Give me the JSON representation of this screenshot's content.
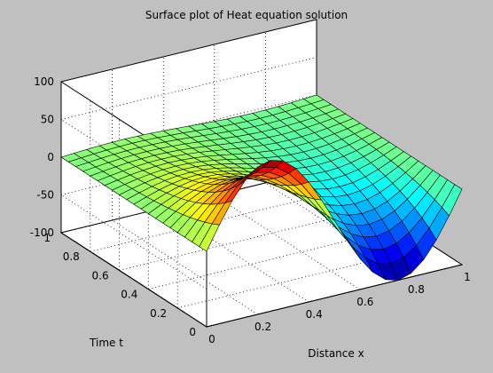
{
  "chart_data": {
    "type": "surface",
    "title": "Surface plot of Heat equation solution",
    "xlabel": "Distance x",
    "ylabel": "Time t",
    "zlabel": "",
    "xlim": [
      0,
      1
    ],
    "ylim": [
      0,
      1
    ],
    "zlim": [
      -100,
      100
    ],
    "xticks": [
      "0",
      "0.2",
      "0.4",
      "0.6",
      "0.8",
      "1"
    ],
    "yticks": [
      "0",
      "0.2",
      "0.4",
      "0.6",
      "0.8",
      "1"
    ],
    "zticks": [
      "-100",
      "-50",
      "0",
      "50",
      "100"
    ],
    "grid": true,
    "colormap": "jet",
    "x": [
      0,
      0.05,
      0.1,
      0.15,
      0.2,
      0.25,
      0.3,
      0.35,
      0.4,
      0.45,
      0.5,
      0.55,
      0.6,
      0.65,
      0.7,
      0.75,
      0.8,
      0.85,
      0.9,
      0.95,
      1
    ],
    "y": [
      0,
      0.05,
      0.1,
      0.15,
      0.2,
      0.25,
      0.3,
      0.35,
      0.4,
      0.45,
      0.5,
      0.55,
      0.6,
      0.65,
      0.7,
      0.75,
      0.8,
      0.85,
      0.9,
      0.95,
      1
    ],
    "z": [
      [
        0,
        30.9,
        58.8,
        80.9,
        95.1,
        100,
        95.1,
        80.9,
        58.8,
        30.9,
        0,
        -30.9,
        -58.8,
        -80.9,
        -95.1,
        -100,
        -95.1,
        -80.9,
        -58.8,
        -30.9,
        0
      ],
      [
        0,
        26.1,
        49.7,
        68.4,
        80.4,
        84.5,
        80.4,
        68.4,
        49.7,
        26.1,
        0,
        -26.1,
        -49.7,
        -68.4,
        -80.4,
        -84.5,
        -80.4,
        -68.4,
        -49.7,
        -26.1,
        0
      ],
      [
        0,
        22.1,
        42,
        57.8,
        67.9,
        71.4,
        67.9,
        57.8,
        42,
        22.1,
        0,
        -22.1,
        -42,
        -57.8,
        -67.9,
        -71.4,
        -67.9,
        -57.8,
        -42,
        -22.1,
        0
      ],
      [
        0,
        18.7,
        35.5,
        48.8,
        57.4,
        60.4,
        57.4,
        48.8,
        35.5,
        18.7,
        0,
        -18.7,
        -35.5,
        -48.8,
        -57.4,
        -60.4,
        -57.4,
        -48.8,
        -35.5,
        -18.7,
        0
      ],
      [
        0,
        15.8,
        30,
        41.3,
        48.5,
        51,
        48.5,
        41.3,
        30,
        15.8,
        0,
        -15.8,
        -30,
        -41.3,
        -48.5,
        -51,
        -48.5,
        -41.3,
        -30,
        -15.8,
        0
      ],
      [
        0,
        13.3,
        25.3,
        34.9,
        41,
        43.1,
        41,
        34.9,
        25.3,
        13.3,
        0,
        -13.3,
        -25.3,
        -34.9,
        -41,
        -43.1,
        -41,
        -34.9,
        -25.3,
        -13.3,
        0
      ],
      [
        0,
        11.3,
        21.4,
        29.5,
        34.6,
        36.4,
        34.6,
        29.5,
        21.4,
        11.3,
        0,
        -11.3,
        -21.4,
        -29.5,
        -34.6,
        -36.4,
        -34.6,
        -29.5,
        -21.4,
        -11.3,
        0
      ],
      [
        0,
        9.5,
        18.1,
        24.9,
        29.3,
        30.8,
        29.3,
        24.9,
        18.1,
        9.5,
        0,
        -9.5,
        -18.1,
        -24.9,
        -29.3,
        -30.8,
        -29.3,
        -24.9,
        -18.1,
        -9.5,
        0
      ],
      [
        0,
        8.1,
        15.3,
        21.1,
        24.8,
        26,
        24.8,
        21.1,
        15.3,
        8.1,
        0,
        -8.1,
        -15.3,
        -21.1,
        -24.8,
        -26,
        -24.8,
        -21.1,
        -15.3,
        -8.1,
        0
      ],
      [
        0,
        6.8,
        12.9,
        17.8,
        20.9,
        22,
        20.9,
        17.8,
        12.9,
        6.8,
        0,
        -6.8,
        -12.9,
        -17.8,
        -20.9,
        -22,
        -20.9,
        -17.8,
        -12.9,
        -6.8,
        0
      ],
      [
        0,
        5.8,
        10.9,
        15,
        17.7,
        18.6,
        17.7,
        15,
        10.9,
        5.8,
        0,
        -5.8,
        -10.9,
        -15,
        -17.7,
        -18.6,
        -17.7,
        -15,
        -10.9,
        -5.8,
        0
      ],
      [
        0,
        4.9,
        9.2,
        12.7,
        14.9,
        15.7,
        14.9,
        12.7,
        9.2,
        4.9,
        0,
        -4.9,
        -9.2,
        -12.7,
        -14.9,
        -15.7,
        -14.9,
        -12.7,
        -9.2,
        -4.9,
        0
      ],
      [
        0,
        4.1,
        7.8,
        10.7,
        12.6,
        13.3,
        12.6,
        10.7,
        7.8,
        4.1,
        0,
        -4.1,
        -7.8,
        -10.7,
        -12.6,
        -13.3,
        -12.6,
        -10.7,
        -7.8,
        -4.1,
        0
      ],
      [
        0,
        3.5,
        6.6,
        9.1,
        10.7,
        11.2,
        10.7,
        9.1,
        6.6,
        3.5,
        0,
        -3.5,
        -6.6,
        -9.1,
        -10.7,
        -11.2,
        -10.7,
        -9.1,
        -6.6,
        -3.5,
        0
      ],
      [
        0,
        2.9,
        5.6,
        7.7,
        9,
        9.5,
        9,
        7.7,
        5.6,
        2.9,
        0,
        -2.9,
        -5.6,
        -7.7,
        -9,
        -9.5,
        -9,
        -7.7,
        -5.6,
        -2.9,
        0
      ],
      [
        0,
        2.5,
        4.7,
        6.5,
        7.6,
        8,
        7.6,
        6.5,
        4.7,
        2.5,
        0,
        -2.5,
        -4.7,
        -6.5,
        -7.6,
        -8,
        -7.6,
        -6.5,
        -4.7,
        -2.5,
        0
      ],
      [
        0,
        2.1,
        4,
        5.5,
        6.4,
        6.8,
        6.4,
        5.5,
        4,
        2.1,
        0,
        -2.1,
        -4,
        -5.5,
        -6.4,
        -6.8,
        -6.4,
        -5.5,
        -4,
        -2.1,
        0
      ],
      [
        0,
        1.8,
        3.4,
        4.6,
        5.4,
        5.7,
        5.4,
        4.6,
        3.4,
        1.8,
        0,
        -1.8,
        -3.4,
        -4.6,
        -5.4,
        -5.7,
        -5.4,
        -4.6,
        -3.4,
        -1.8,
        0
      ],
      [
        0,
        1.5,
        2.8,
        3.9,
        4.6,
        4.8,
        4.6,
        3.9,
        2.8,
        1.5,
        0,
        -1.5,
        -2.8,
        -3.9,
        -4.6,
        -4.8,
        -4.6,
        -3.9,
        -2.8,
        -1.5,
        0
      ],
      [
        0,
        1.3,
        2.4,
        3.3,
        3.9,
        4.1,
        3.9,
        3.3,
        2.4,
        1.3,
        0,
        -1.3,
        -2.4,
        -3.3,
        -3.9,
        -4.1,
        -3.9,
        -3.3,
        -2.4,
        -1.3,
        0
      ],
      [
        0,
        1.1,
        2,
        2.8,
        3.3,
        3.5,
        3.3,
        2.8,
        2,
        1.1,
        0,
        -1.1,
        -2,
        -2.8,
        -3.3,
        -3.5,
        -3.3,
        -2.8,
        -2,
        -1.1,
        0
      ]
    ]
  }
}
